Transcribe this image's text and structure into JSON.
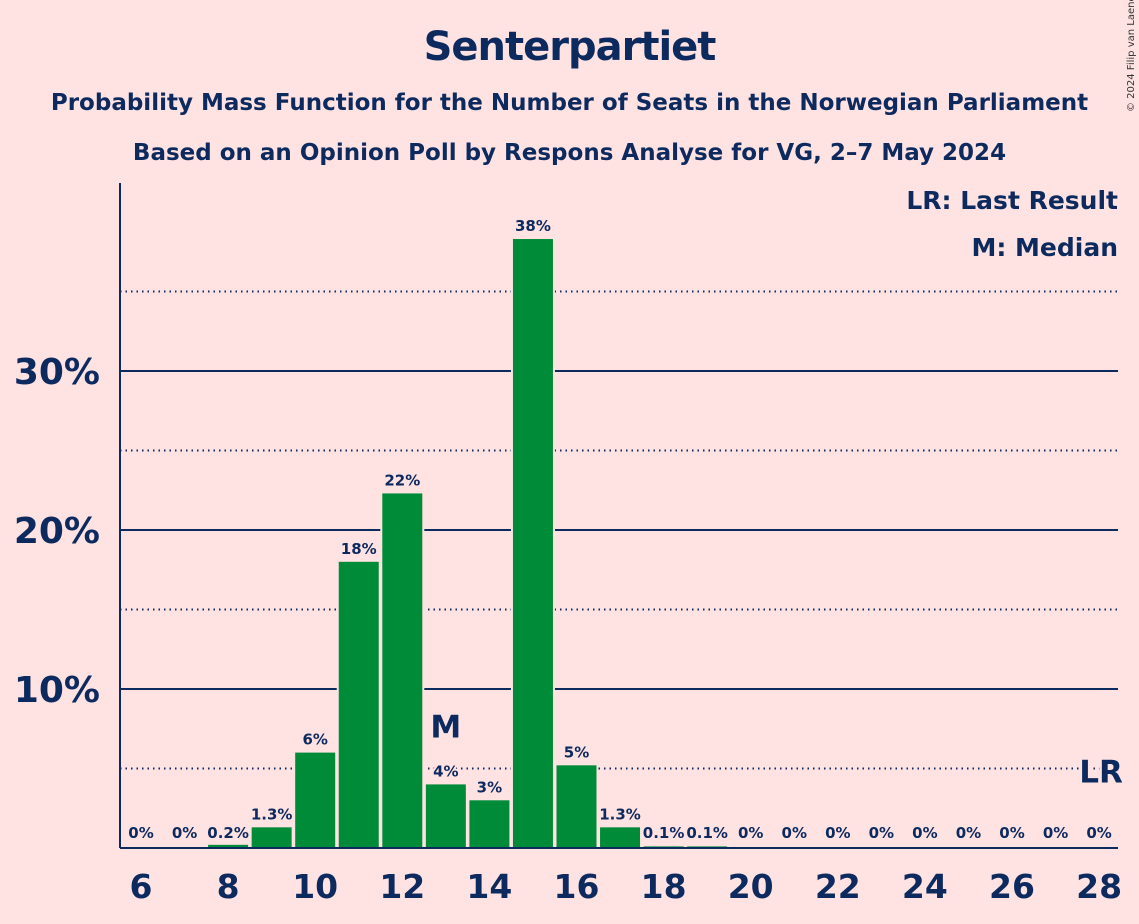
{
  "title": "Senterpartiet",
  "subtitle_1": "Probability Mass Function for the Number of Seats in the Norwegian Parliament",
  "subtitle_2": "Based on an Opinion Poll by Respons Analyse for VG, 2–7 May 2024",
  "copyright": "© 2024 Filip van Laenen",
  "legend": {
    "last_result": "LR: Last Result",
    "median": "M: Median"
  },
  "colors": {
    "background": "#FFE3E3",
    "bar": "#008B38",
    "text": "#0D2A5E"
  },
  "chart_data": {
    "type": "bar",
    "title": "Senterpartiet",
    "categories": [
      6,
      7,
      8,
      9,
      10,
      11,
      12,
      13,
      14,
      15,
      16,
      17,
      18,
      19,
      20,
      21,
      22,
      23,
      24,
      25,
      26,
      27,
      28
    ],
    "values": [
      0,
      0,
      0.2,
      1.3,
      6,
      18,
      22.3,
      4,
      3,
      38.3,
      5.2,
      1.3,
      0.1,
      0.1,
      0,
      0,
      0,
      0,
      0,
      0,
      0,
      0,
      0
    ],
    "data_labels": [
      "0%",
      "0%",
      "0.2%",
      "1.3%",
      "6%",
      "18%",
      "22%",
      "4%",
      "3%",
      "38%",
      "5%",
      "1.3%",
      "0.1%",
      "0.1%",
      "0%",
      "0%",
      "0%",
      "0%",
      "0%",
      "0%",
      "0%",
      "0%",
      "0%"
    ],
    "x_ticks": [
      6,
      8,
      10,
      12,
      14,
      16,
      18,
      20,
      22,
      24,
      26,
      28
    ],
    "y_ticks": [
      10,
      20,
      30
    ],
    "y_tick_labels": [
      "10%",
      "20%",
      "30%"
    ],
    "y_minor_ticks": [
      5,
      15,
      25,
      35
    ],
    "ylim": [
      0,
      41.8
    ],
    "xlabel": "",
    "ylabel": "",
    "median": 13,
    "median_label": "M",
    "last_result": 28,
    "last_result_label": "LR"
  }
}
